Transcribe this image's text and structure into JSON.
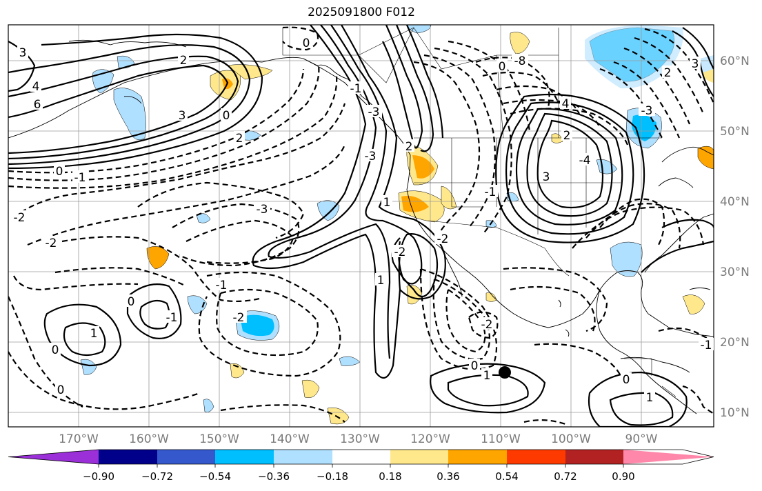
{
  "title": "2025091800 F012",
  "map": {
    "lat_labels": [
      "60°N",
      "50°N",
      "40°N",
      "30°N",
      "20°N",
      "10°N"
    ],
    "lon_labels": [
      "170°W",
      "160°W",
      "150°W",
      "140°W",
      "130°W",
      "120°W",
      "110°W",
      "100°W",
      "90°W"
    ],
    "contour_labels": [
      "0",
      "2",
      "3",
      "4",
      "6",
      "2",
      "3",
      "0",
      "-1",
      "-2",
      "-3",
      "0",
      "-2",
      "-3",
      "-2",
      "-1",
      "0",
      "1",
      "-1",
      "-2",
      "0",
      "1",
      "0",
      "-2",
      "1",
      "-3",
      "3",
      "2",
      "1",
      "0",
      "-2",
      "-1",
      "0",
      "1",
      "-1",
      "-3",
      "-4",
      "-8",
      "0",
      "2",
      "4",
      "3",
      "-1",
      "2"
    ],
    "marker": "station-dot"
  },
  "colorbar": {
    "ticks": [
      "−0.90",
      "−0.72",
      "−0.54",
      "−0.36",
      "−0.18",
      "0.18",
      "0.36",
      "0.54",
      "0.72",
      "0.90"
    ],
    "colors": [
      "#9b30d9",
      "#00008b",
      "#3559cc",
      "#00bfff",
      "#b0e0ff",
      "#ffffff",
      "#ffe88c",
      "#ffa500",
      "#ff3a00",
      "#b22222",
      "#ff88aa"
    ]
  }
}
